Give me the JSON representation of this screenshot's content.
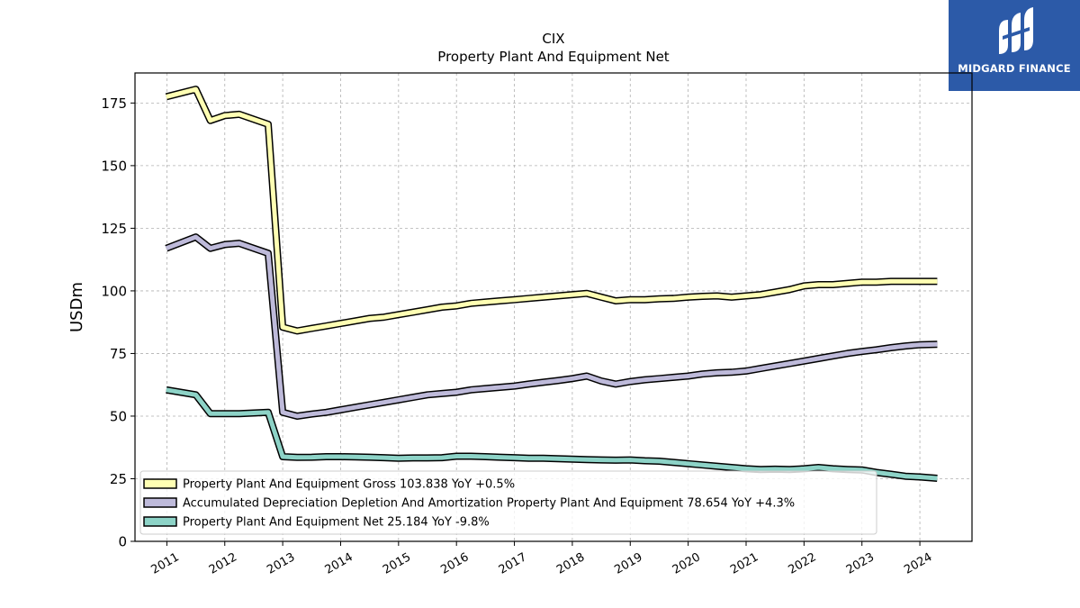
{
  "brand": {
    "logo_text": "MIDGARD FINANCE",
    "background_color": "#2c5aa8"
  },
  "chart_data": {
    "type": "line",
    "title": "CIX",
    "subtitle": "Property Plant And Equipment Net",
    "ylabel": "USDm",
    "xlabel": "",
    "ylim": [
      0,
      187
    ],
    "xlim": [
      2010.45,
      2024.9
    ],
    "yticks": [
      0,
      25,
      50,
      75,
      100,
      125,
      150,
      175
    ],
    "xticks": [
      "2011",
      "2012",
      "2013",
      "2014",
      "2015",
      "2016",
      "2017",
      "2018",
      "2019",
      "2020",
      "2021",
      "2022",
      "2023",
      "2024"
    ],
    "grid": true,
    "legend_position": "lower-left",
    "series": [
      {
        "name": "Property Plant And Equipment Gross",
        "legend_label": "Property Plant And Equipment Gross  103.838 YoY +0.5%",
        "color": "#ffffb3",
        "x": [
          2010.99,
          2011.5,
          2011.75,
          2012.0,
          2012.25,
          2012.75,
          2013.0,
          2013.25,
          2013.5,
          2013.75,
          2014.0,
          2014.25,
          2014.5,
          2014.75,
          2015.0,
          2015.25,
          2015.5,
          2015.75,
          2016.0,
          2016.25,
          2016.5,
          2016.75,
          2017.0,
          2017.25,
          2017.5,
          2017.75,
          2018.0,
          2018.25,
          2018.5,
          2018.75,
          2019.0,
          2019.25,
          2019.5,
          2019.75,
          2020.0,
          2020.25,
          2020.5,
          2020.75,
          2021.0,
          2021.25,
          2021.5,
          2021.75,
          2022.0,
          2022.25,
          2022.5,
          2022.75,
          2023.0,
          2023.25,
          2023.5,
          2023.75,
          2024.0,
          2024.3
        ],
        "values": [
          177.5,
          180.5,
          168.0,
          170.0,
          170.5,
          166.5,
          85.5,
          84.0,
          85.0,
          86.0,
          87.0,
          88.0,
          89.0,
          89.5,
          90.5,
          91.5,
          92.5,
          93.5,
          94.0,
          95.0,
          95.5,
          96.0,
          96.5,
          97.0,
          97.5,
          98.0,
          98.5,
          99.0,
          97.5,
          96.0,
          96.5,
          96.5,
          96.8,
          97.0,
          97.5,
          97.8,
          98.0,
          97.5,
          98.0,
          98.5,
          99.5,
          100.5,
          102.0,
          102.5,
          102.5,
          103.0,
          103.5,
          103.5,
          103.8,
          103.8,
          103.8,
          103.8
        ]
      },
      {
        "name": "Accumulated Depreciation Depletion And Amortization Property Plant And Equipment",
        "legend_label": "Accumulated Depreciation Depletion And Amortization Property Plant And Equipment  78.654 YoY +4.3%",
        "color": "#bebada",
        "x": [
          2010.99,
          2011.5,
          2011.75,
          2012.0,
          2012.25,
          2012.75,
          2013.0,
          2013.25,
          2013.5,
          2013.75,
          2014.0,
          2014.25,
          2014.5,
          2014.75,
          2015.0,
          2015.25,
          2015.5,
          2015.75,
          2016.0,
          2016.25,
          2016.5,
          2016.75,
          2017.0,
          2017.25,
          2017.5,
          2017.75,
          2018.0,
          2018.25,
          2018.5,
          2018.75,
          2019.0,
          2019.25,
          2019.5,
          2019.75,
          2020.0,
          2020.25,
          2020.5,
          2020.75,
          2021.0,
          2021.25,
          2021.5,
          2021.75,
          2022.0,
          2022.25,
          2022.5,
          2022.75,
          2023.0,
          2023.25,
          2023.5,
          2023.75,
          2024.0,
          2024.3
        ],
        "values": [
          117.0,
          121.5,
          117.0,
          118.5,
          119.0,
          115.0,
          51.5,
          50.0,
          50.8,
          51.5,
          52.5,
          53.5,
          54.5,
          55.5,
          56.5,
          57.5,
          58.5,
          59.0,
          59.5,
          60.5,
          61.0,
          61.5,
          62.0,
          62.8,
          63.5,
          64.2,
          65.0,
          66.0,
          64.0,
          62.8,
          63.8,
          64.5,
          65.0,
          65.5,
          66.0,
          66.8,
          67.3,
          67.5,
          68.0,
          69.0,
          70.0,
          71.0,
          72.0,
          73.0,
          74.0,
          75.0,
          75.8,
          76.5,
          77.3,
          78.0,
          78.5,
          78.654
        ]
      },
      {
        "name": "Property Plant And Equipment Net",
        "legend_label": "Property Plant And Equipment Net  25.184 YoY -9.8%",
        "color": "#8dd3c7",
        "x": [
          2010.99,
          2011.5,
          2011.75,
          2012.0,
          2012.25,
          2012.75,
          2013.0,
          2013.25,
          2013.5,
          2013.75,
          2014.0,
          2014.25,
          2014.5,
          2014.75,
          2015.0,
          2015.25,
          2015.5,
          2015.75,
          2016.0,
          2016.25,
          2016.5,
          2016.75,
          2017.0,
          2017.25,
          2017.5,
          2017.75,
          2018.0,
          2018.25,
          2018.5,
          2018.75,
          2019.0,
          2019.25,
          2019.5,
          2019.75,
          2020.0,
          2020.25,
          2020.5,
          2020.75,
          2021.0,
          2021.25,
          2021.5,
          2021.75,
          2022.0,
          2022.25,
          2022.5,
          2022.75,
          2023.0,
          2023.25,
          2023.5,
          2023.75,
          2024.0,
          2024.3
        ],
        "values": [
          60.5,
          58.5,
          51.0,
          51.0,
          51.0,
          51.5,
          33.8,
          33.5,
          33.6,
          33.8,
          33.8,
          33.7,
          33.6,
          33.4,
          33.2,
          33.3,
          33.3,
          33.4,
          34.0,
          34.0,
          33.8,
          33.6,
          33.4,
          33.2,
          33.2,
          33.0,
          32.8,
          32.6,
          32.5,
          32.4,
          32.5,
          32.2,
          32.0,
          31.5,
          31.0,
          30.5,
          30.0,
          29.5,
          29.0,
          28.7,
          28.8,
          28.7,
          29.0,
          29.5,
          29.0,
          28.7,
          28.5,
          27.5,
          26.8,
          26.0,
          25.7,
          25.184
        ]
      }
    ]
  }
}
